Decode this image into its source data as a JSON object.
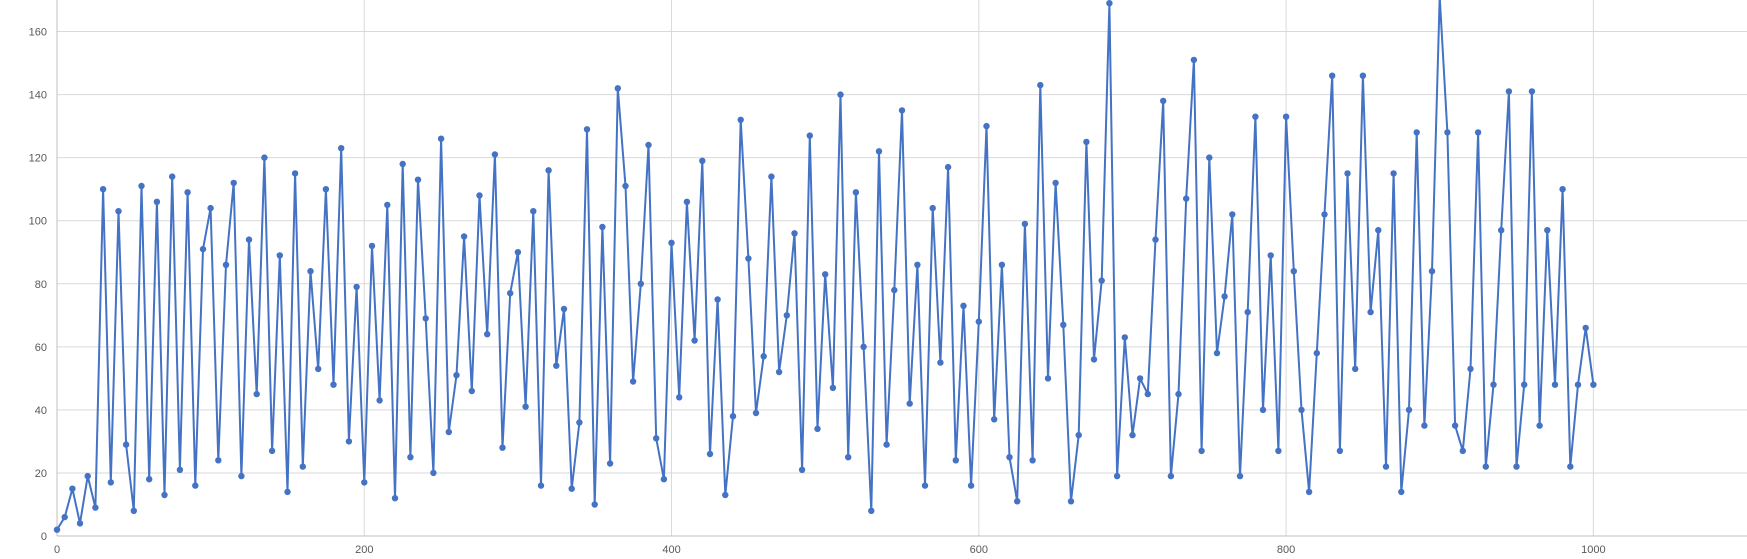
{
  "chart_data": {
    "type": "line",
    "title": "",
    "xlabel": "",
    "ylabel": "",
    "xlim": [
      0,
      1100
    ],
    "ylim": [
      0,
      170
    ],
    "x_ticks": [
      0,
      200,
      400,
      600,
      800,
      1000
    ],
    "y_ticks": [
      0,
      20,
      40,
      60,
      80,
      100,
      120,
      140,
      160
    ],
    "grid": true,
    "legend": "none",
    "markers": true,
    "series_color": "#4472c4",
    "series": [
      {
        "x": [
          0,
          5,
          10,
          15,
          20,
          25,
          30,
          35,
          40,
          45,
          50,
          55,
          60,
          65,
          70,
          75,
          80,
          85,
          90,
          95,
          100,
          105,
          110,
          115,
          120,
          125,
          130,
          135,
          140,
          145,
          150,
          155,
          160,
          165,
          170,
          175,
          180,
          185,
          190,
          195,
          200,
          205,
          210,
          215,
          220,
          225,
          230,
          235,
          240,
          245,
          250,
          255,
          260,
          265,
          270,
          275,
          280,
          285,
          290,
          295,
          300,
          305,
          310,
          315,
          320,
          325,
          330,
          335,
          340,
          345,
          350,
          355,
          360,
          365,
          370,
          375,
          380,
          385,
          390,
          395,
          400,
          405,
          410,
          415,
          420,
          425,
          430,
          435,
          440,
          445,
          450,
          455,
          460,
          465,
          470,
          475,
          480,
          485,
          490,
          495,
          500,
          505,
          510,
          515,
          520,
          525,
          530,
          535,
          540,
          545,
          550,
          555,
          560,
          565,
          570,
          575,
          580,
          585,
          590,
          595,
          600,
          605,
          610,
          615,
          620,
          625,
          630,
          635,
          640,
          645,
          650,
          655,
          660,
          665,
          670,
          675,
          680,
          685,
          690,
          695,
          700,
          705,
          710,
          715,
          720,
          725,
          730,
          735,
          740,
          745,
          750,
          755,
          760,
          765,
          770,
          775,
          780,
          785,
          790,
          795,
          800,
          805,
          810,
          815,
          820,
          825,
          830,
          835,
          840,
          845,
          850,
          855,
          860,
          865,
          870,
          875,
          880,
          885,
          890,
          895,
          900,
          905,
          910,
          915,
          920,
          925,
          930,
          935,
          940,
          945,
          950,
          955,
          960,
          965,
          970,
          975,
          980,
          985,
          990,
          995,
          1000
        ],
        "values": [
          2,
          6,
          15,
          4,
          19,
          9,
          110,
          17,
          103,
          29,
          8,
          111,
          18,
          106,
          13,
          114,
          21,
          109,
          16,
          91,
          104,
          24,
          86,
          112,
          19,
          94,
          45,
          120,
          27,
          89,
          14,
          115,
          22,
          84,
          53,
          110,
          48,
          123,
          30,
          79,
          17,
          92,
          43,
          105,
          12,
          118,
          25,
          113,
          69,
          20,
          126,
          33,
          51,
          95,
          46,
          108,
          64,
          121,
          28,
          77,
          90,
          41,
          103,
          16,
          116,
          54,
          72,
          15,
          36,
          129,
          10,
          98,
          23,
          142,
          111,
          49,
          80,
          124,
          31,
          18,
          93,
          44,
          106,
          62,
          119,
          26,
          75,
          13,
          38,
          132,
          88,
          39,
          57,
          114,
          52,
          70,
          96,
          21,
          127,
          34,
          83,
          47,
          140,
          25,
          109,
          60,
          8,
          122,
          29,
          78,
          135,
          42,
          86,
          16,
          104,
          55,
          117,
          24,
          73,
          16,
          68,
          130,
          37,
          86,
          25,
          11,
          99,
          24,
          143,
          50,
          112,
          67,
          11,
          32,
          125,
          56,
          81,
          169,
          19,
          63,
          32,
          50,
          45,
          94,
          138,
          19,
          45,
          107,
          151,
          27,
          120,
          58,
          76,
          102,
          19,
          71,
          133,
          40,
          89,
          27,
          133,
          84,
          40,
          14,
          58,
          102,
          146,
          27,
          115,
          53,
          146,
          71,
          97,
          22,
          115,
          14,
          40,
          128,
          35,
          84,
          171,
          128,
          35,
          27,
          53,
          128,
          22,
          48,
          97,
          141,
          22,
          48,
          141,
          35,
          97,
          48,
          110,
          22,
          48,
          66,
          48
        ]
      }
    ]
  }
}
